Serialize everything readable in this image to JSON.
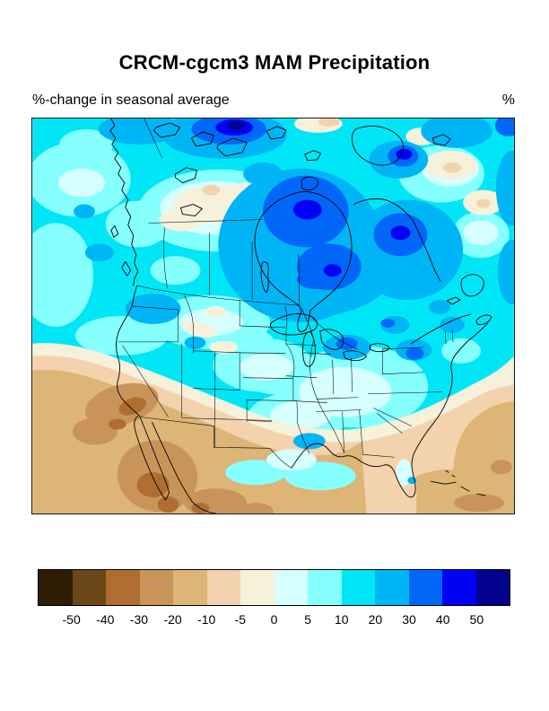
{
  "page": {
    "background": "#ffffff"
  },
  "figure": {
    "title": "CRCM-cgcm3 MAM Precipitation",
    "subtitle": "%-change in seasonal average",
    "unit_label": "%"
  },
  "colorbar": {
    "tick_labels": [
      "-50",
      "-40",
      "-30",
      "-20",
      "-10",
      "-5",
      "0",
      "5",
      "10",
      "20",
      "30",
      "40",
      "50"
    ],
    "segment_colors": [
      "#2e1c05",
      "#6b4616",
      "#b06d31",
      "#c9945a",
      "#ddb577",
      "#f2d3ae",
      "#f6f1da",
      "#d6ffff",
      "#86ffff",
      "#00e6f6",
      "#00b5f6",
      "#0067f9",
      "#0101f4",
      "#02028e"
    ],
    "border_color": "#000000"
  },
  "map": {
    "outline_color": "#000000"
  }
}
